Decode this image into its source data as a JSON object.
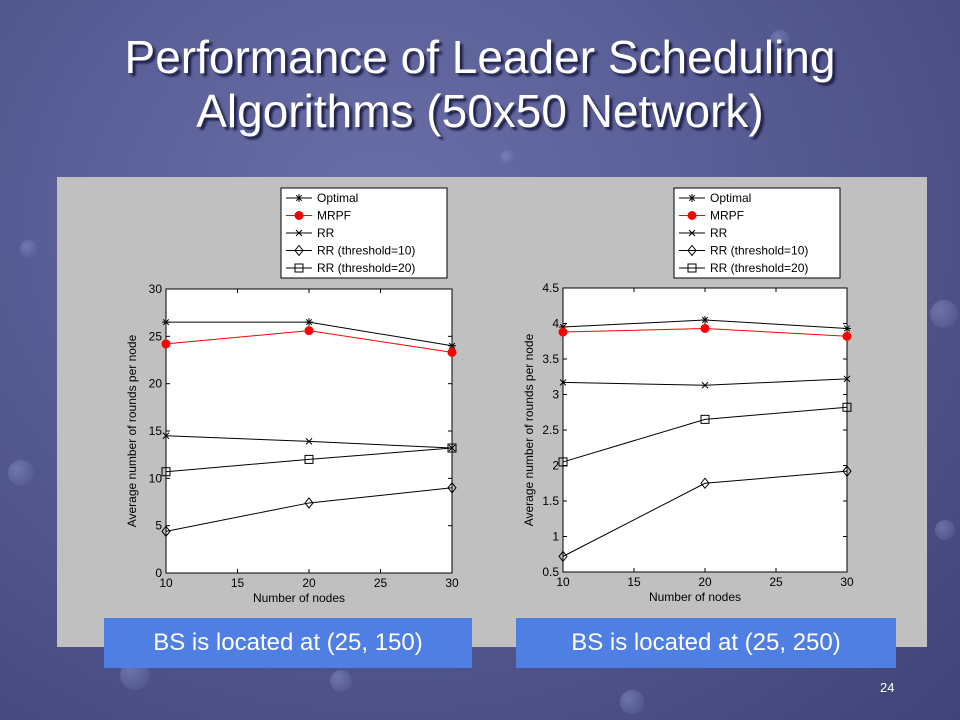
{
  "slide": {
    "title_line1": "Performance of Leader Scheduling",
    "title_line2": "Algorithms (50x50 Network)",
    "page_number": "24"
  },
  "legend_entries": [
    "Optimal",
    "MRPF",
    "RR",
    "RR (threshold=10)",
    "RR (threshold=20)"
  ],
  "chart_data": [
    {
      "type": "line",
      "xlabel": "Number of nodes",
      "ylabel": "Average number of rounds per node",
      "x": [
        10,
        20,
        30
      ],
      "xlim": [
        10,
        30
      ],
      "ylim": [
        0,
        30
      ],
      "xticks": [
        "10",
        "15",
        "20",
        "25",
        "30"
      ],
      "yticks": [
        "0",
        "5",
        "10",
        "15",
        "20",
        "25",
        "30"
      ],
      "series": [
        {
          "name": "Optimal",
          "values": [
            26.5,
            26.5,
            24.0
          ],
          "marker": "star",
          "color": "#000000"
        },
        {
          "name": "MRPF",
          "values": [
            24.2,
            25.6,
            23.3
          ],
          "marker": "dot",
          "color": "#ff0000"
        },
        {
          "name": "RR",
          "values": [
            14.5,
            13.9,
            13.2
          ],
          "marker": "x",
          "color": "#000000"
        },
        {
          "name": "RR (threshold=10)",
          "values": [
            4.4,
            7.4,
            9.0
          ],
          "marker": "diamond",
          "color": "#000000"
        },
        {
          "name": "RR (threshold=20)",
          "values": [
            10.7,
            12.0,
            13.2
          ],
          "marker": "square",
          "color": "#000000"
        }
      ],
      "caption": "BS is located at (25, 150)"
    },
    {
      "type": "line",
      "xlabel": "Number of nodes",
      "ylabel": "Average number of rounds per node",
      "x": [
        10,
        20,
        30
      ],
      "xlim": [
        10,
        30
      ],
      "ylim": [
        0.5,
        4.5
      ],
      "xticks": [
        "10",
        "15",
        "20",
        "25",
        "30"
      ],
      "yticks": [
        "0.5",
        "1",
        "1.5",
        "2",
        "2.5",
        "3",
        "3.5",
        "4",
        "4.5"
      ],
      "series": [
        {
          "name": "Optimal",
          "values": [
            3.95,
            4.05,
            3.93
          ],
          "marker": "star",
          "color": "#000000"
        },
        {
          "name": "MRPF",
          "values": [
            3.88,
            3.93,
            3.82
          ],
          "marker": "dot",
          "color": "#ff0000"
        },
        {
          "name": "RR",
          "values": [
            3.17,
            3.13,
            3.22
          ],
          "marker": "x",
          "color": "#000000"
        },
        {
          "name": "RR (threshold=10)",
          "values": [
            0.72,
            1.75,
            1.92
          ],
          "marker": "diamond",
          "color": "#000000"
        },
        {
          "name": "RR (threshold=20)",
          "values": [
            2.05,
            2.65,
            2.82
          ],
          "marker": "square",
          "color": "#000000"
        }
      ],
      "caption": "BS is located at (25, 250)"
    }
  ]
}
